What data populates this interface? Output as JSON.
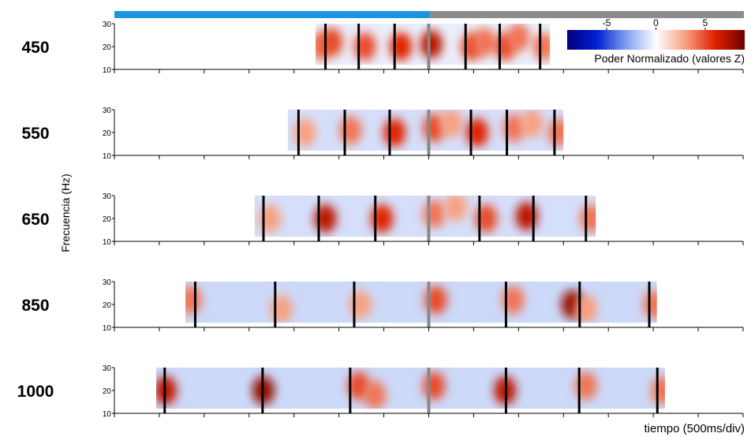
{
  "figure": {
    "ylabel": "Frecuencia (Hz)",
    "xlabel": "tiempo (500ms/div)",
    "xlim": [
      -3500,
      3500
    ],
    "xticks": [
      -3500,
      -3000,
      -2500,
      -2000,
      -1500,
      -1000,
      -500,
      0,
      500,
      1000,
      1500,
      2000,
      2500,
      3000,
      3500
    ],
    "colorbar": {
      "label": "Poder Normalizado (valores Z)",
      "lim": [
        -9,
        9
      ],
      "ticks": [
        -5,
        0,
        5
      ]
    }
  },
  "chart_data": [
    {
      "type": "heatmap",
      "title": "450",
      "ylim": [
        10,
        30
      ],
      "yticks": [
        10,
        20,
        30
      ],
      "span": [
        -1260,
        1350
      ],
      "background_z": -0.5,
      "events": [
        -1150,
        -780,
        -380,
        410,
        790,
        1240
      ],
      "x": [
        -1200,
        -1080,
        -710,
        -310,
        30,
        480,
        620,
        850,
        1000,
        1280
      ],
      "y": [
        20,
        22,
        20,
        20,
        21,
        20,
        22,
        20,
        24,
        20
      ],
      "values": [
        4,
        5,
        5,
        6,
        7,
        5,
        4,
        5,
        4,
        4
      ]
    },
    {
      "type": "heatmap",
      "title": "550",
      "ylim": [
        10,
        30
      ],
      "yticks": [
        10,
        20,
        30
      ],
      "span": [
        -1570,
        1500
      ],
      "background_z": -1,
      "events": [
        -1450,
        -935,
        -435,
        470,
        870,
        1400
      ],
      "x": [
        -1380,
        -870,
        -380,
        60,
        250,
        540,
        950,
        1150,
        1450
      ],
      "y": [
        20,
        21,
        20,
        22,
        24,
        20,
        22,
        24,
        20
      ],
      "values": [
        3,
        4,
        6,
        5,
        3,
        6,
        4,
        3,
        4
      ]
    },
    {
      "type": "heatmap",
      "title": "650",
      "ylim": [
        10,
        30
      ],
      "yticks": [
        10,
        20,
        30
      ],
      "span": [
        -1940,
        1860
      ],
      "background_z": -1,
      "events": [
        -1840,
        -1225,
        -595,
        565,
        1165,
        1750
      ],
      "x": [
        -1770,
        -1150,
        -520,
        60,
        300,
        640,
        1090,
        1810
      ],
      "y": [
        20,
        20,
        20,
        22,
        25,
        20,
        21,
        20
      ],
      "values": [
        3,
        7,
        6,
        4,
        3,
        5,
        7,
        4
      ]
    },
    {
      "type": "heatmap",
      "title": "850",
      "ylim": [
        10,
        30
      ],
      "yticks": [
        10,
        20,
        30
      ],
      "span": [
        -2710,
        2540
      ],
      "background_z": -1.2,
      "events": [
        -2600,
        -1710,
        -830,
        860,
        1680,
        2455
      ],
      "x": [
        -2650,
        -1640,
        -760,
        80,
        940,
        1600,
        1750,
        2510
      ],
      "y": [
        22,
        18,
        20,
        22,
        22,
        20,
        18,
        20
      ],
      "values": [
        4,
        3,
        3,
        5,
        4,
        8,
        3,
        4
      ]
    },
    {
      "type": "heatmap",
      "title": "1000",
      "ylim": [
        10,
        30
      ],
      "yticks": [
        10,
        20,
        30
      ],
      "span": [
        -3035,
        2630
      ],
      "background_z": -1.2,
      "events": [
        -2940,
        -1850,
        -875,
        860,
        1675,
        2545
      ],
      "x": [
        -2930,
        -1840,
        -780,
        -600,
        60,
        850,
        1750,
        2600
      ],
      "y": [
        20,
        20,
        22,
        18,
        22,
        20,
        22,
        20
      ],
      "values": [
        7,
        8,
        5,
        4,
        5,
        7,
        4,
        4
      ]
    }
  ]
}
